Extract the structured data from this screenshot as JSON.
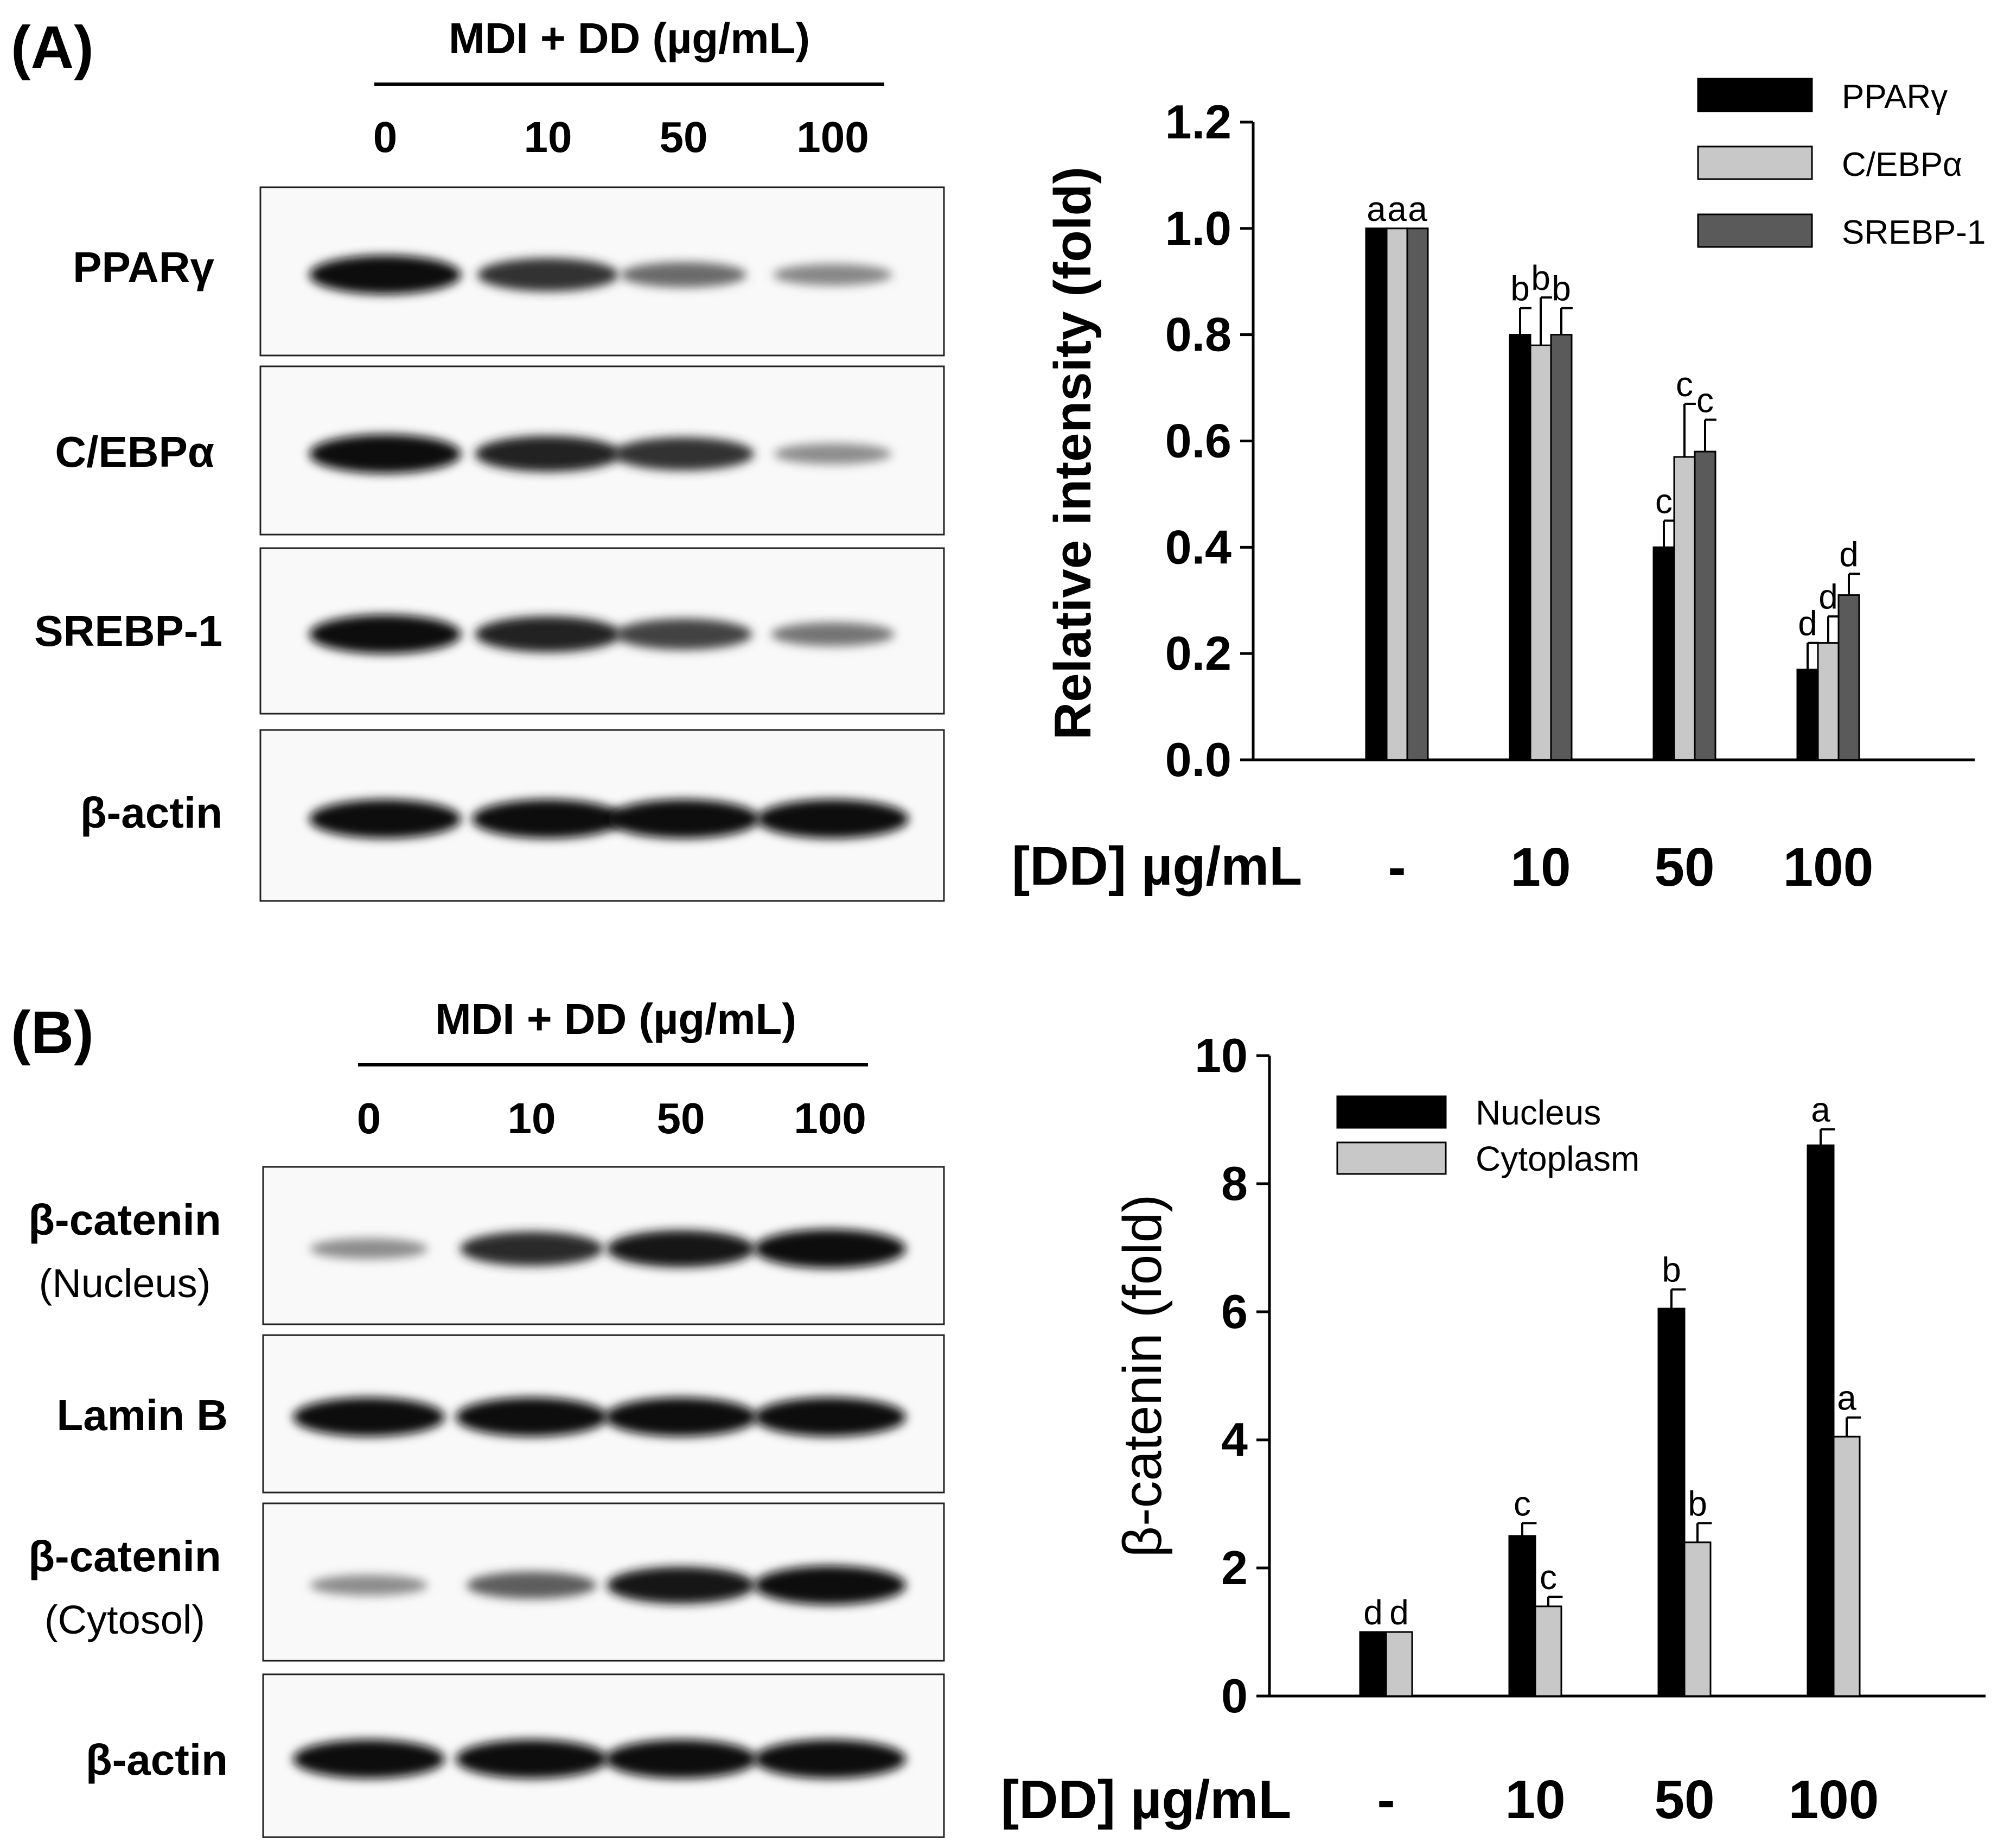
{
  "panel_a": {
    "label": "(A)",
    "blot": {
      "treatment": "MDI  + DD (µg/mL)",
      "doses": [
        "0",
        "10",
        "50",
        "100"
      ],
      "proteins": [
        "PPARγ",
        "C/EBPα",
        "SREBP-1",
        "β-actin"
      ],
      "sub_labels": [
        "",
        "",
        "",
        ""
      ],
      "band_intensity": [
        [
          1.0,
          0.78,
          0.48,
          0.33
        ],
        [
          1.0,
          0.88,
          0.78,
          0.3
        ],
        [
          1.0,
          0.88,
          0.7,
          0.42
        ],
        [
          1.0,
          1.0,
          1.0,
          1.0
        ]
      ]
    }
  },
  "panel_b": {
    "label": "(B)",
    "blot": {
      "treatment": "MDI  + DD (µg/mL)",
      "doses": [
        "0",
        "10",
        "50",
        "100"
      ],
      "proteins": [
        "β-catenin",
        "Lamin B",
        "β-catenin",
        "β-actin"
      ],
      "sub_labels": [
        "(Nucleus)",
        "",
        "(Cytosol)",
        ""
      ],
      "band_intensity": [
        [
          0.3,
          0.82,
          0.92,
          1.0
        ],
        [
          1.0,
          1.0,
          1.0,
          1.0
        ],
        [
          0.3,
          0.55,
          0.92,
          1.0
        ],
        [
          1.0,
          1.0,
          1.0,
          1.0
        ]
      ]
    }
  },
  "chart_data": [
    {
      "type": "bar",
      "title": "",
      "xlabel": "[DD] µg/mL",
      "ylabel": "Relative intensity (fold)",
      "categories": [
        "-",
        "10",
        "50",
        "100"
      ],
      "ylim": [
        0,
        1.2
      ],
      "yticks": [
        "0.0",
        "0.2",
        "0.4",
        "0.6",
        "0.8",
        "1.0",
        "1.2"
      ],
      "legend_position": "top-right",
      "series": [
        {
          "name": "PPARγ",
          "color": "#000000",
          "values": [
            1.0,
            0.8,
            0.4,
            0.17
          ],
          "errors": [
            0,
            0.05,
            0.05,
            0.05
          ],
          "letters": [
            "a",
            "b",
            "c",
            "d"
          ]
        },
        {
          "name": "C/EBPα",
          "color": "#c8c8c8",
          "values": [
            1.0,
            0.78,
            0.57,
            0.22
          ],
          "errors": [
            0,
            0.09,
            0.1,
            0.05
          ],
          "letters": [
            "a",
            "b",
            "c",
            "d"
          ]
        },
        {
          "name": "SREBP-1",
          "color": "#5a5a5a",
          "values": [
            1.0,
            0.8,
            0.58,
            0.31
          ],
          "errors": [
            0,
            0.05,
            0.06,
            0.04
          ],
          "letters": [
            "a",
            "b",
            "c",
            "d"
          ]
        }
      ]
    },
    {
      "type": "bar",
      "title": "",
      "xlabel": "[DD] µg/mL",
      "ylabel": "β-catenin (fold)",
      "categories": [
        "-",
        "10",
        "50",
        "100"
      ],
      "ylim": [
        0,
        10
      ],
      "yticks": [
        "0",
        "2",
        "4",
        "6",
        "8",
        "10"
      ],
      "legend_position": "top-left",
      "series": [
        {
          "name": "Nucleus",
          "color": "#000000",
          "values": [
            1.0,
            2.5,
            6.05,
            8.6
          ],
          "errors": [
            0,
            0.2,
            0.3,
            0.25
          ],
          "letters": [
            "d",
            "c",
            "b",
            "a"
          ]
        },
        {
          "name": "Cytoplasm",
          "color": "#c8c8c8",
          "values": [
            1.0,
            1.4,
            2.4,
            4.05
          ],
          "errors": [
            0,
            0.15,
            0.3,
            0.3
          ],
          "letters": [
            "d",
            "c",
            "b",
            "a"
          ]
        }
      ]
    }
  ]
}
